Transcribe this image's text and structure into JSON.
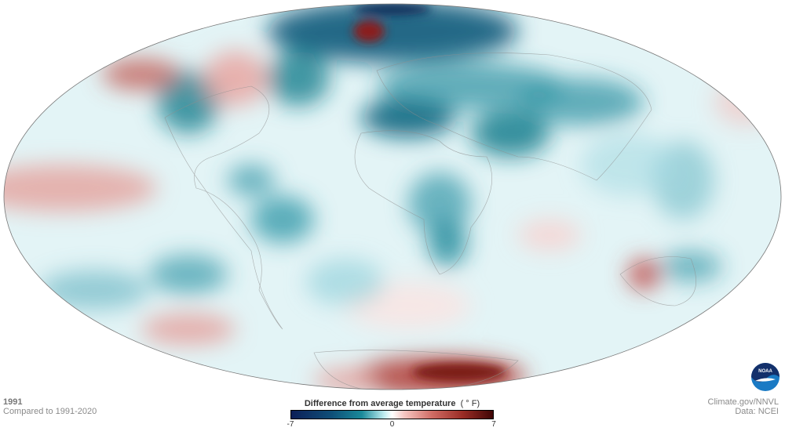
{
  "map": {
    "projection": "Hammer/Mollweide-style world",
    "colors": {
      "cold_extreme": "#0b1f4f",
      "cold": "#1a8296",
      "neutral": "#ffffff",
      "warm": "#c2544f",
      "warm_extreme": "#4a0a0a",
      "coastline": "#888888"
    }
  },
  "info": {
    "year": "1991",
    "comparison": "Compared to 1991-2020"
  },
  "legend": {
    "title": "Difference from average temperature",
    "unit": "( ° F)",
    "min_label": "-7",
    "mid_label": "0",
    "max_label": "7",
    "range": [
      -7,
      7
    ]
  },
  "credits": {
    "source": "Climate.gov/NNVL",
    "data": "Data: NCEI",
    "logo_text": "NOAA"
  }
}
